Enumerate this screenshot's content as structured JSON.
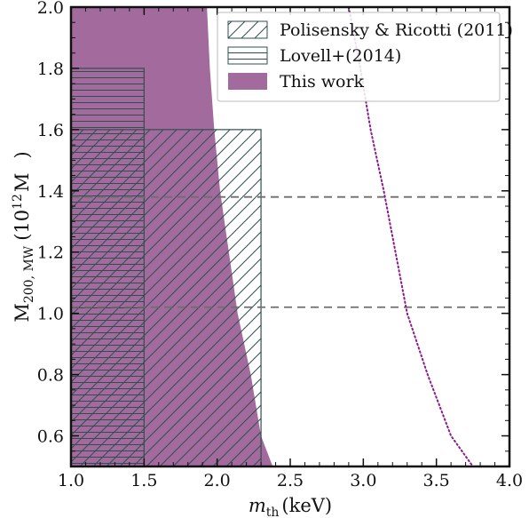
{
  "chart_data": {
    "type": "area",
    "title": "",
    "xlabel": {
      "main": "m",
      "sub": "th",
      "unit": "(keV)"
    },
    "ylabel": {
      "main": "M",
      "sub": "200, MW",
      "unit_pre": "(10",
      "unit_sup": "12",
      "unit_mid": "M",
      "unit_post": ")"
    },
    "xlim": [
      1.0,
      4.0
    ],
    "ylim": [
      0.5,
      2.0
    ],
    "xticks": [
      "1.0",
      "1.5",
      "2.0",
      "2.5",
      "3.0",
      "3.5",
      "4.0"
    ],
    "yticks": [
      "0.6",
      "0.8",
      "1.0",
      "1.2",
      "1.4",
      "1.6",
      "1.8",
      "2.0"
    ],
    "xtick_values": [
      1.0,
      1.5,
      2.0,
      2.5,
      3.0,
      3.5,
      4.0
    ],
    "ytick_values": [
      0.6,
      0.8,
      1.0,
      1.2,
      1.4,
      1.6,
      1.8,
      2.0
    ],
    "grid": false,
    "legend_position": "top-right",
    "series": [
      {
        "name": "Polisensky & Ricotti (2011)",
        "kind": "hatched-rect-diagonal",
        "x_range": [
          1.0,
          2.3
        ],
        "y_range": [
          0.5,
          1.6
        ],
        "color": "#2f4f4f"
      },
      {
        "name": "Lovell+(2014)",
        "kind": "hatched-rect-horizontal",
        "x_range": [
          1.0,
          1.5
        ],
        "y_range": [
          0.5,
          1.8
        ],
        "color": "#2f4f4f"
      },
      {
        "name": "This work",
        "kind": "filled-region",
        "color": "#a36a9e",
        "boundary": [
          {
            "x": 1.93,
            "y": 2.0
          },
          {
            "x": 1.95,
            "y": 1.8
          },
          {
            "x": 1.98,
            "y": 1.6
          },
          {
            "x": 2.02,
            "y": 1.4
          },
          {
            "x": 2.08,
            "y": 1.2
          },
          {
            "x": 2.14,
            "y": 1.0
          },
          {
            "x": 2.23,
            "y": 0.8
          },
          {
            "x": 2.3,
            "y": 0.6
          },
          {
            "x": 2.38,
            "y": 0.5
          }
        ]
      },
      {
        "name": "",
        "kind": "dotted-line",
        "color": "#8b1a8b",
        "points": [
          {
            "x": 2.9,
            "y": 2.0
          },
          {
            "x": 2.98,
            "y": 1.8
          },
          {
            "x": 3.05,
            "y": 1.6
          },
          {
            "x": 3.14,
            "y": 1.4
          },
          {
            "x": 3.22,
            "y": 1.2
          },
          {
            "x": 3.3,
            "y": 1.0
          },
          {
            "x": 3.44,
            "y": 0.8
          },
          {
            "x": 3.6,
            "y": 0.6
          },
          {
            "x": 3.75,
            "y": 0.5
          }
        ]
      }
    ],
    "hlines": [
      {
        "y": 1.38,
        "style": "dashed",
        "color": "#6e6e6e"
      },
      {
        "y": 1.02,
        "style": "dashed",
        "color": "#6e6e6e"
      }
    ]
  }
}
